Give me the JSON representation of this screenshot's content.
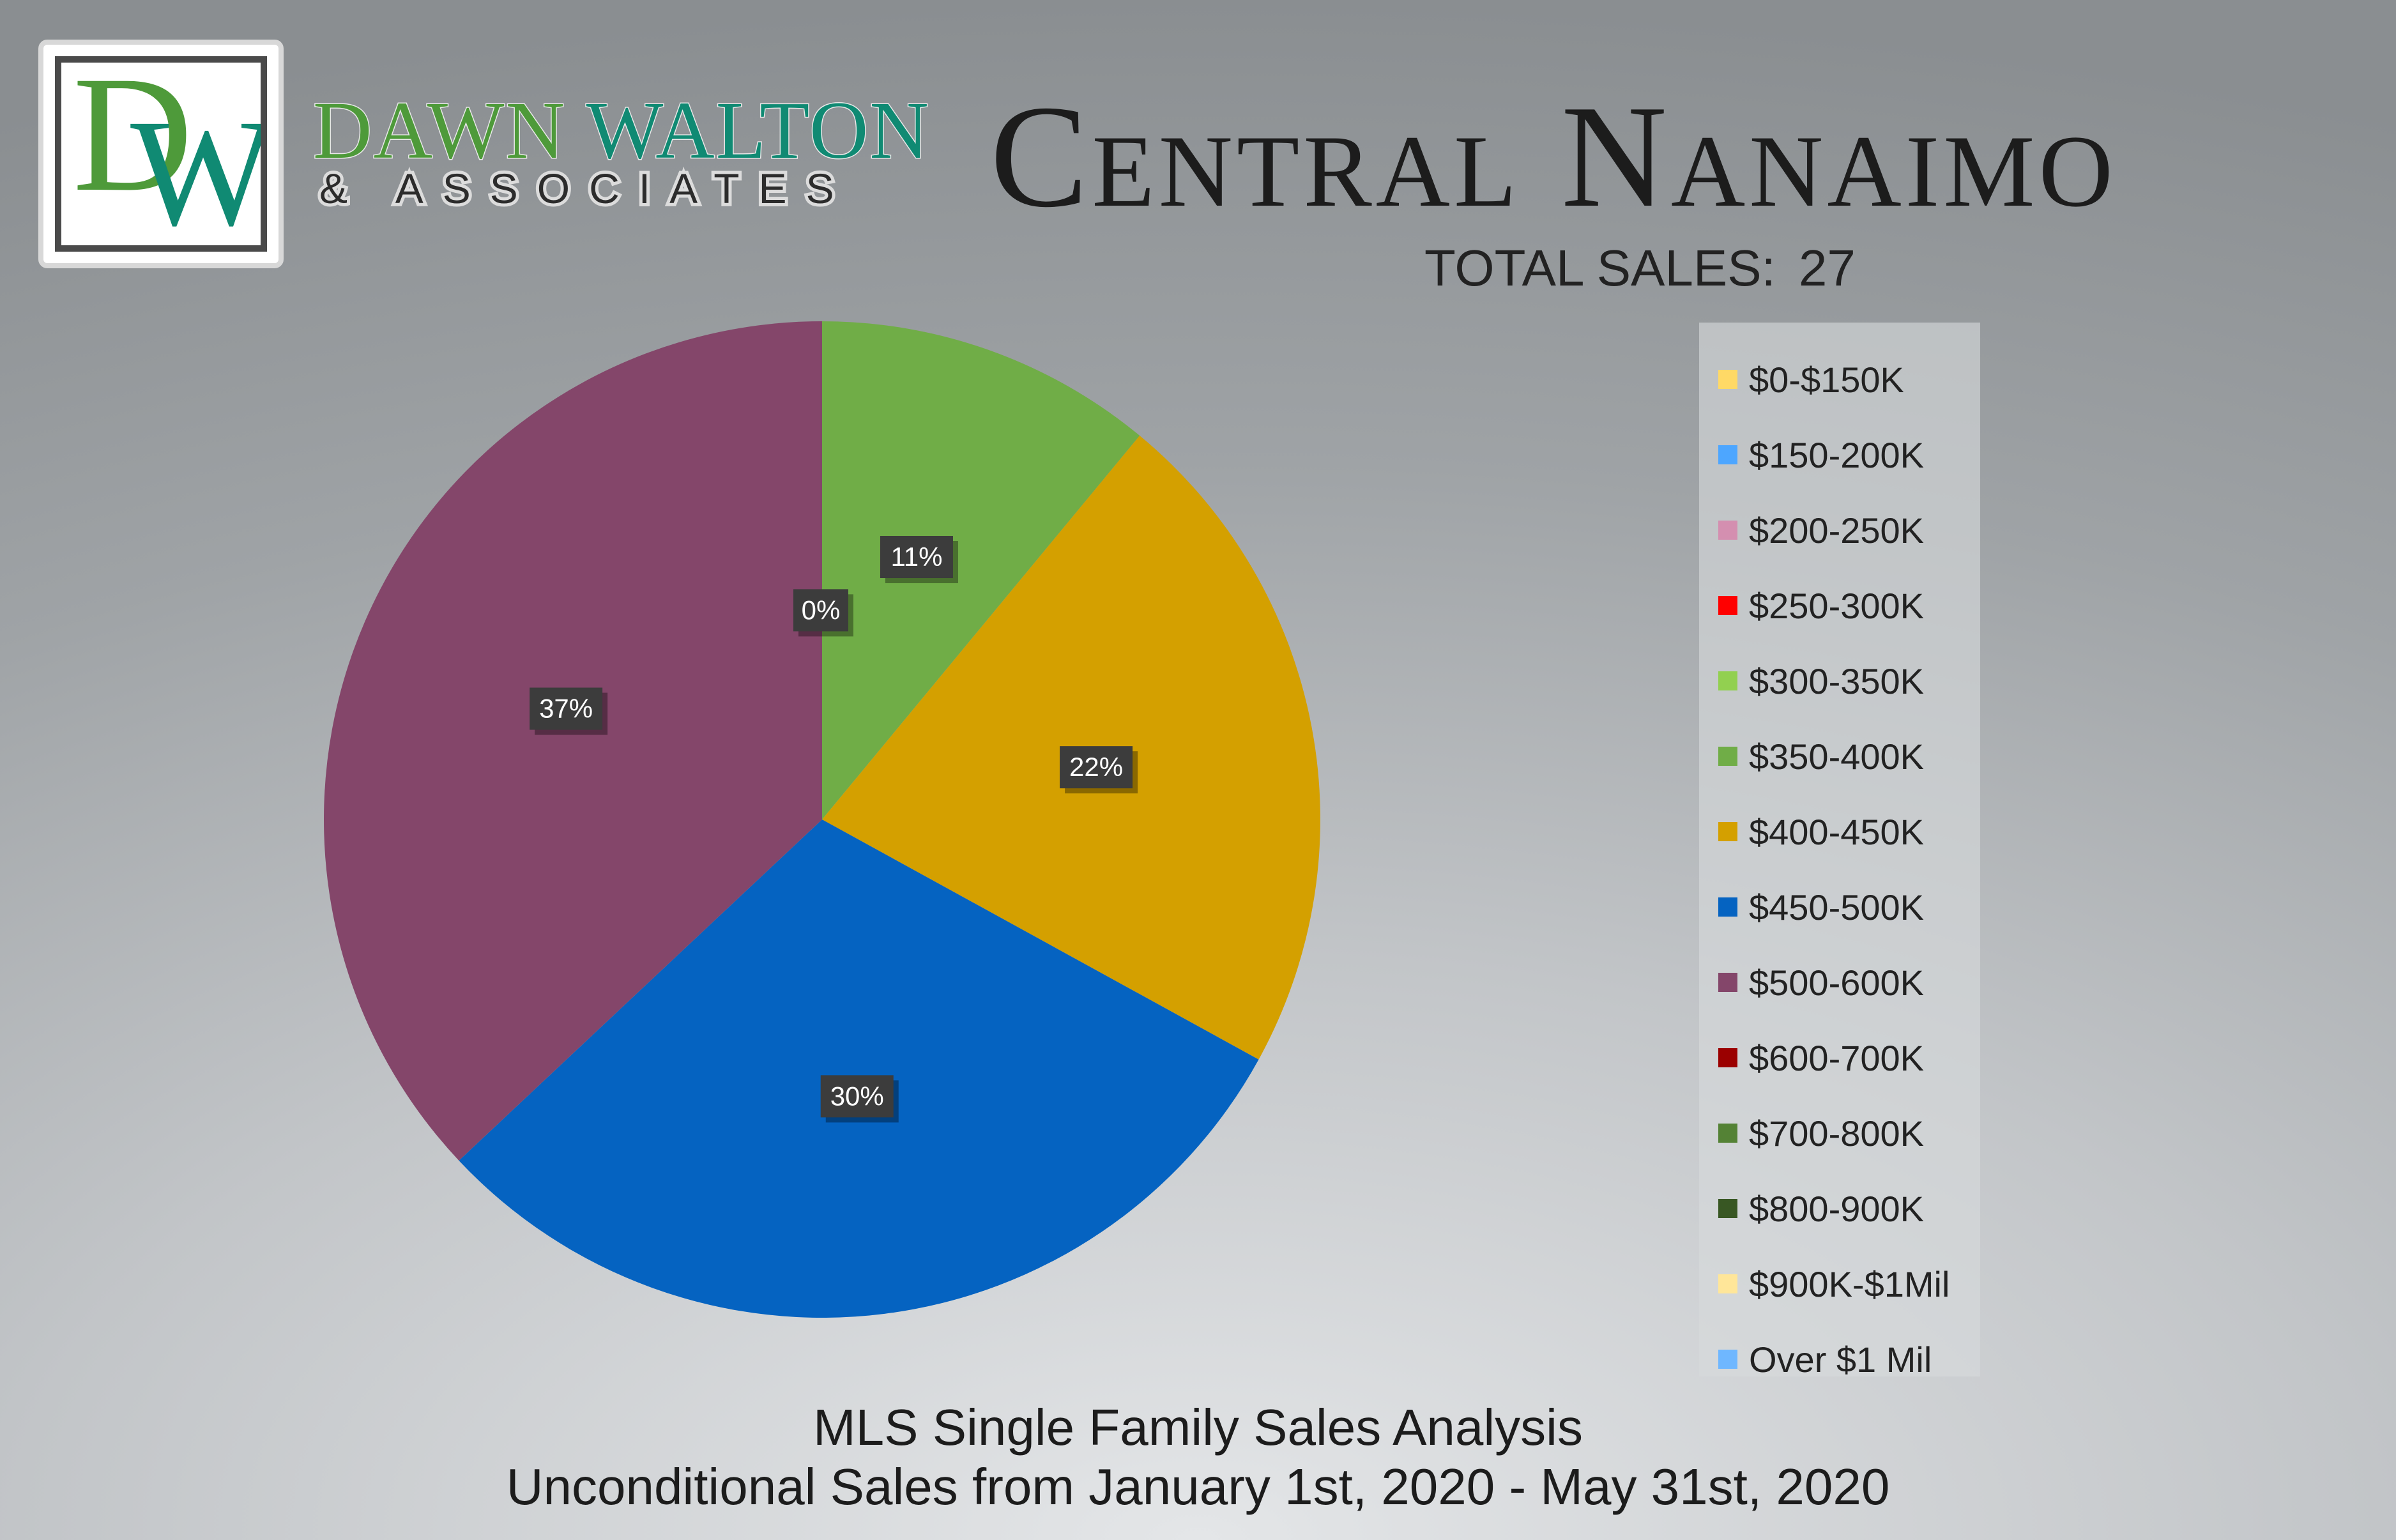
{
  "logo": {
    "monogram_d": "D",
    "monogram_w": "W",
    "name_part1": "DAWN ",
    "name_part2": "WALTON",
    "subtitle": "& ASSOCIATES"
  },
  "header": {
    "title": "Central Nanaimo",
    "total_sales_label": "TOTAL SALES:",
    "total_sales_value": "27"
  },
  "footer": {
    "line1": "MLS Single Family Sales Analysis",
    "line2": "Unconditional Sales from January 1st, 2020 - May 31st, 2020"
  },
  "colors": {
    "logo_green": "#4e9a3a",
    "logo_teal": "#108a73"
  },
  "chart_data": {
    "type": "pie",
    "legend_position": "right",
    "categories": [
      "$0-$150K",
      "$150-200K",
      "$200-250K",
      "$250-300K",
      "$300-350K",
      "$350-400K",
      "$400-450K",
      "$450-500K",
      "$500-600K",
      "$600-700K",
      "$700-800K",
      "$800-900K",
      "$900K-$1Mil",
      "Over $1 Mil"
    ],
    "values": [
      0,
      0,
      0,
      0,
      0,
      11,
      22,
      30,
      37,
      0,
      0,
      0,
      0,
      0
    ],
    "colors": [
      "#ffd966",
      "#4da6ff",
      "#d48fb0",
      "#ff0000",
      "#92d050",
      "#70ad47",
      "#d4a000",
      "#0563c1",
      "#84466a",
      "#9b0000",
      "#548235",
      "#385723",
      "#ffe699",
      "#6fb7ff"
    ],
    "data_labels": [
      {
        "text": "0%",
        "slice": 4
      },
      {
        "text": "11%",
        "slice": 5
      },
      {
        "text": "22%",
        "slice": 6
      },
      {
        "text": "30%",
        "slice": 7
      },
      {
        "text": "37%",
        "slice": 8
      }
    ]
  }
}
